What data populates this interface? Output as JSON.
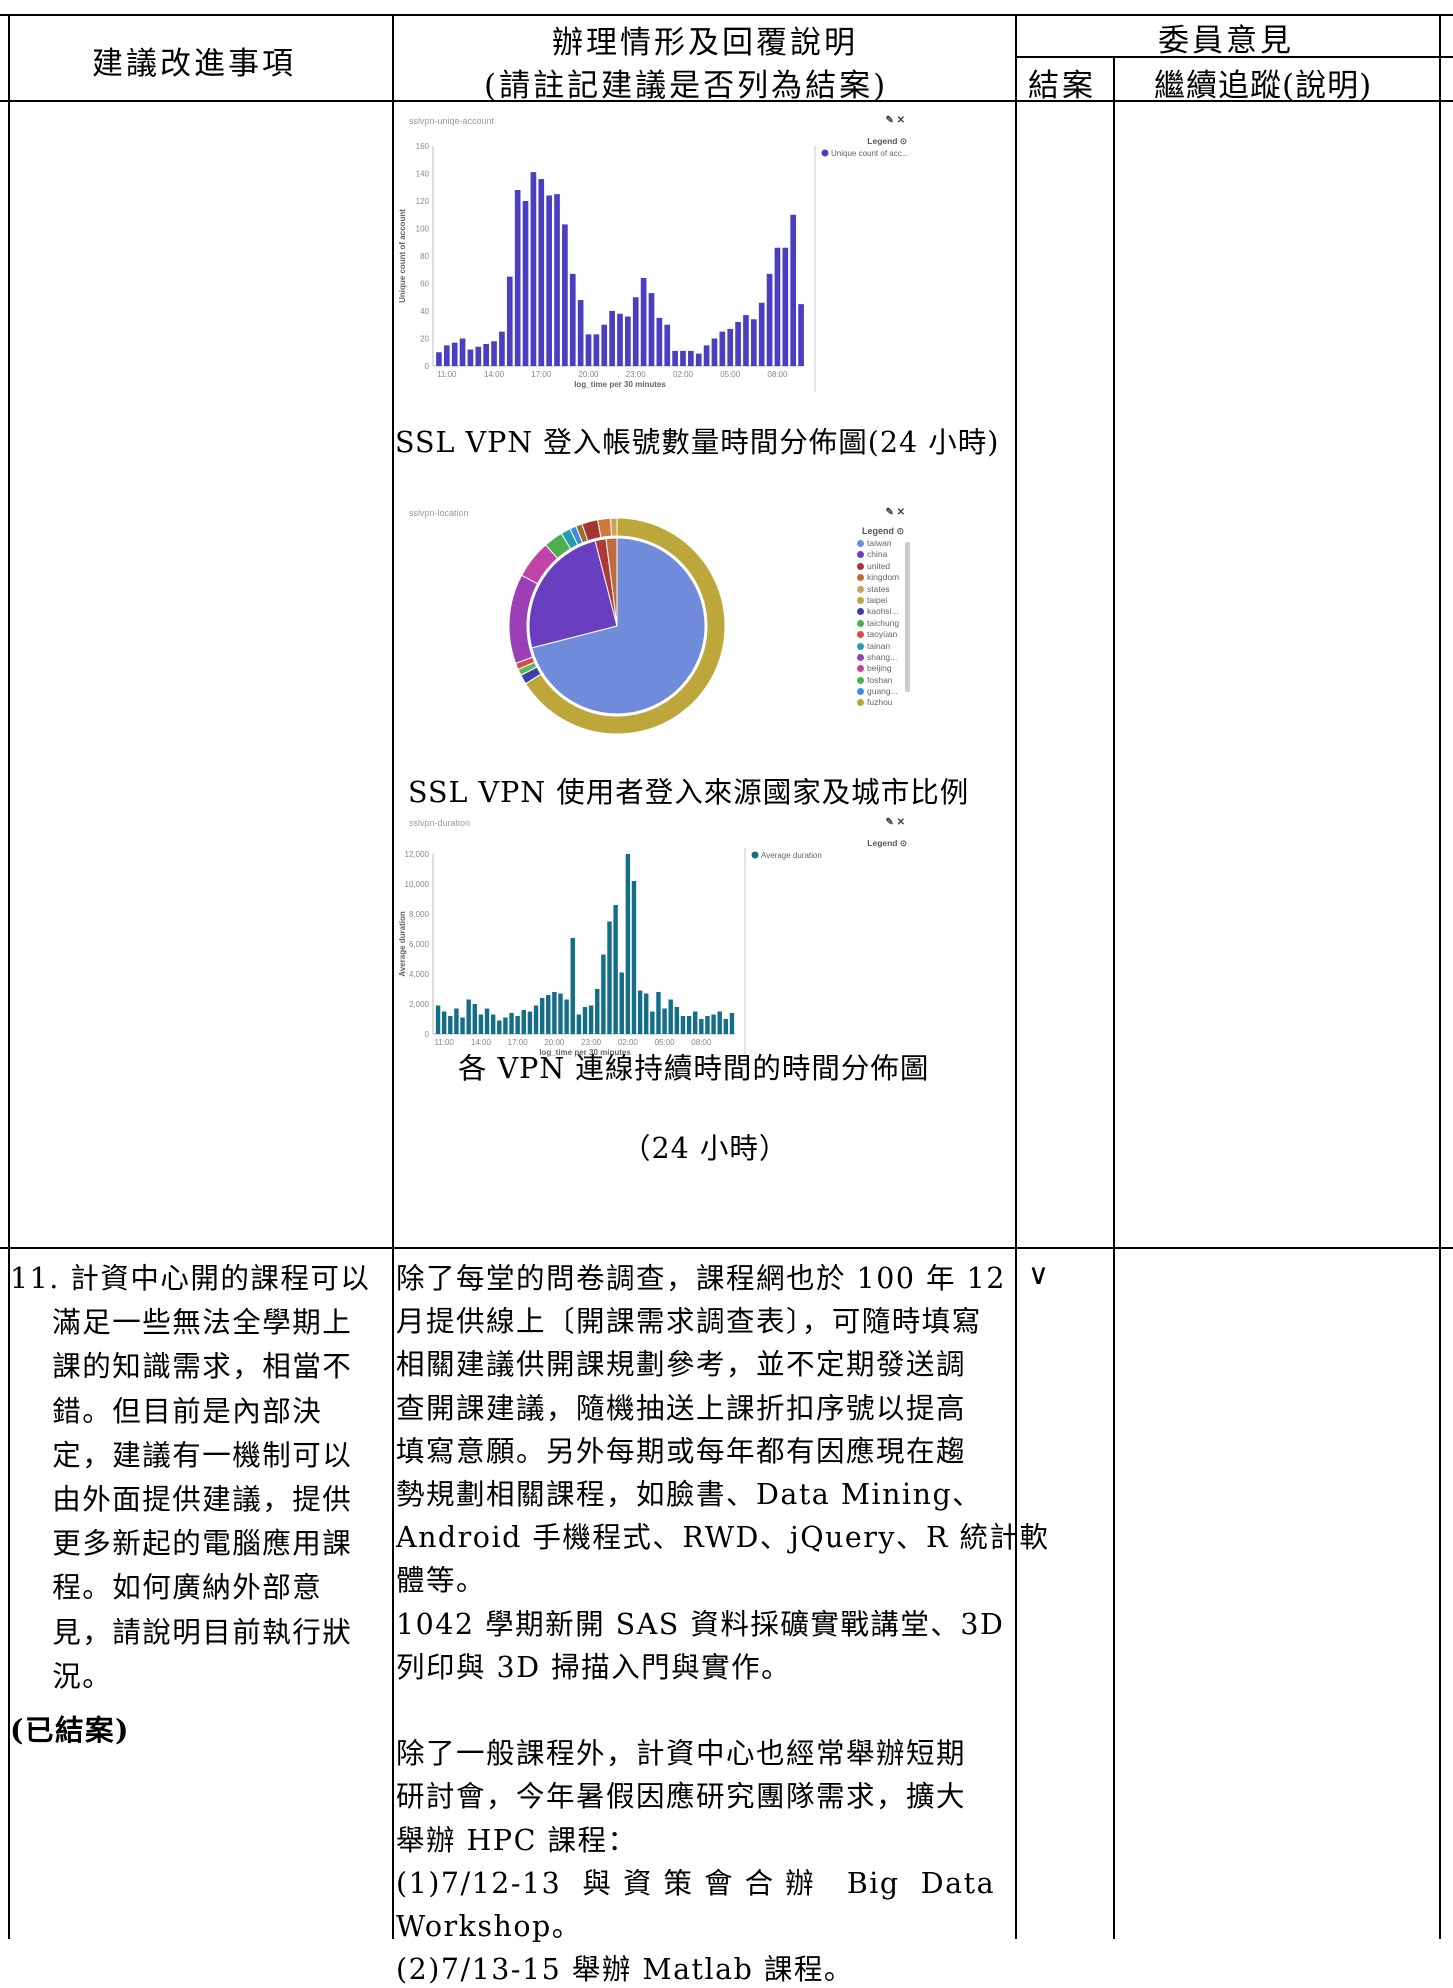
{
  "header": {
    "col1": "建議改進事項",
    "col2_line1": "辦理情形及回覆說明",
    "col2_line2": "(請註記建議是否列為結案)",
    "col3": "委員意見",
    "col3_close": "結案",
    "col3_track": "繼續追蹤(說明)"
  },
  "chart1": {
    "panel_title": "sslvpn-uniqe-account",
    "tools": "✎ ✕",
    "caption": "SSL VPN 登入帳號數量時間分佈圖(24 小時)",
    "chart_data": {
      "type": "bar",
      "title": "",
      "xlabel": "log_time per 30 minutes",
      "ylabel": "Unique count of account",
      "ylim": [
        0,
        160
      ],
      "yticks": [
        "0",
        "20",
        "40",
        "60",
        "80",
        "100",
        "120",
        "140",
        "160"
      ],
      "xtick_labels": [
        "11:00",
        "14:00",
        "17:00",
        "20:00",
        "23:00",
        "02:00",
        "05:00",
        "08:00"
      ],
      "legend_title": "Legend",
      "series": [
        {
          "name": "Unique count of acc...",
          "color": "#4a3fc1",
          "values": [
            10,
            15,
            17,
            20,
            12,
            14,
            16,
            18,
            25,
            65,
            128,
            120,
            141,
            136,
            124,
            125,
            103,
            67,
            48,
            23,
            23,
            30,
            40,
            38,
            36,
            50,
            64,
            53,
            35,
            30,
            11,
            11,
            11,
            9,
            15,
            20,
            25,
            27,
            32,
            37,
            34,
            46,
            67,
            86,
            86,
            110,
            45
          ]
        }
      ]
    }
  },
  "chart2": {
    "panel_title": "sslvpn-location",
    "tools": "✎ ✕",
    "caption": "SSL VPN 使用者登入來源國家及城市比例",
    "legend_title": "Legend",
    "chart_data": {
      "type": "pie",
      "inner": [
        {
          "label": "taiwan",
          "value": 71,
          "color": "#6f8bd9"
        },
        {
          "label": "china",
          "value": 25,
          "color": "#6a3fbf"
        },
        {
          "label": "united",
          "value": 2,
          "color": "#ac3a3a"
        },
        {
          "label": "kingdom",
          "value": 2,
          "color": "#c06a3e"
        }
      ],
      "outer": [
        {
          "label": "taipei",
          "value": 69,
          "color": "#bda73a"
        },
        {
          "label": "kaohsi...",
          "value": 1.5,
          "color": "#3e3fa3"
        },
        {
          "label": "taichung",
          "value": 1,
          "color": "#5cb85c"
        },
        {
          "label": "taoyüan",
          "value": 1,
          "color": "#d84a4a"
        },
        {
          "label": "shang...",
          "value": 14,
          "color": "#9b3fb8"
        },
        {
          "label": "beijing",
          "value": 6,
          "color": "#c044a8"
        },
        {
          "label": "foshan",
          "value": 3,
          "color": "#4cae4c"
        },
        {
          "label": "tainan",
          "value": 1.5,
          "color": "#2a9ab0"
        },
        {
          "label": "guang...",
          "value": 1,
          "color": "#3d8be0"
        },
        {
          "label": "fuzhou",
          "value": 1,
          "color": "#9a6b2c"
        },
        {
          "label": "united",
          "value": 2.5,
          "color": "#a53535"
        },
        {
          "label": "kingdom",
          "value": 2,
          "color": "#d07a3f"
        },
        {
          "label": "states",
          "value": 1,
          "color": "#cba35a"
        }
      ]
    },
    "legend": [
      {
        "label": "taiwan",
        "color": "#6f8bd9"
      },
      {
        "label": "china",
        "color": "#6a3fbf"
      },
      {
        "label": "united",
        "color": "#a53535"
      },
      {
        "label": "kingdom",
        "color": "#c06a3e"
      },
      {
        "label": "states",
        "color": "#cba35a"
      },
      {
        "label": "taipei",
        "color": "#bda73a"
      },
      {
        "label": "kaohsi...",
        "color": "#3e3fa3"
      },
      {
        "label": "taichung",
        "color": "#4cae4c"
      },
      {
        "label": "taoyüan",
        "color": "#d84a4a"
      },
      {
        "label": "tainan",
        "color": "#2a9ab0"
      },
      {
        "label": "shang...",
        "color": "#9b3fb8"
      },
      {
        "label": "beijing",
        "color": "#c044a8"
      },
      {
        "label": "foshan",
        "color": "#4cae4c"
      },
      {
        "label": "guang...",
        "color": "#3d8be0"
      },
      {
        "label": "fuzhou",
        "color": "#bda73a"
      }
    ]
  },
  "chart3": {
    "panel_title": "sslvpn-duration",
    "tools": "✎ ✕",
    "caption_line1": "各 VPN 連線持續時間的時間分佈圖",
    "caption_line2": "（24 小時）",
    "chart_data": {
      "type": "bar",
      "title": "",
      "xlabel": "log_time per 30 minutes",
      "ylabel": "Average duration",
      "ylim": [
        0,
        12000
      ],
      "yticks": [
        "0",
        "2,000",
        "4,000",
        "6,000",
        "8,000",
        "10,000",
        "12,000"
      ],
      "xtick_labels": [
        "11:00",
        "14:00",
        "17:00",
        "20:00",
        "23:00",
        "02:00",
        "05:00",
        "08:00"
      ],
      "legend_title": "Legend",
      "series": [
        {
          "name": "Average duration",
          "color": "#136e8a",
          "values": [
            1900,
            1500,
            1200,
            1700,
            1100,
            2300,
            2000,
            1300,
            1700,
            1300,
            900,
            1100,
            1400,
            1200,
            1600,
            1500,
            1900,
            2400,
            2600,
            2800,
            2700,
            2300,
            6400,
            1300,
            1800,
            1900,
            3000,
            5300,
            7500,
            8600,
            4100,
            12000,
            10200,
            2900,
            2700,
            1500,
            2800,
            1700,
            2300,
            1800,
            1200,
            1200,
            1500,
            1000,
            1200,
            1300,
            1500,
            1000,
            1400
          ]
        }
      ]
    }
  },
  "row11": {
    "item_lines": [
      "11. 計資中心開的課程可以",
      "    滿足一些無法全學期上",
      "    課的知識需求，相當不",
      "    錯。但目前是內部決",
      "    定，建議有一機制可以",
      "    由外面提供建議，提供",
      "    更多新起的電腦應用課",
      "    程。如何廣納外部意",
      "    見，請說明目前執行狀",
      "    況。"
    ],
    "status": "(已結案)",
    "reply_lines": [
      "除了每堂的問卷調查，課程網也於 100 年 12",
      "月提供線上〔開課需求調查表〕，可隨時填寫",
      "相關建議供開課規劃參考，並不定期發送調",
      "查開課建議，隨機抽送上課折扣序號以提高",
      "填寫意願。另外每期或每年都有因應現在趨",
      "勢規劃相關課程，如臉書、Data Mining、",
      "Android 手機程式、RWD、jQuery、R 統計軟",
      "體等。",
      "1042 學期新開 SAS 資料採礦實戰講堂、3D",
      "列印與 3D 掃描入門與實作。",
      "",
      "除了一般課程外，計資中心也經常舉辦短期",
      "研討會，今年暑假因應研究團隊需求，擴大",
      "舉辦 HPC 課程：",
      "(1)7/12-13  與 資 策 會 合 辦   Big  Data",
      "Workshop。",
      "(2)7/13-15 舉辦 Matlab 課程。"
    ],
    "close_mark": "∨"
  }
}
